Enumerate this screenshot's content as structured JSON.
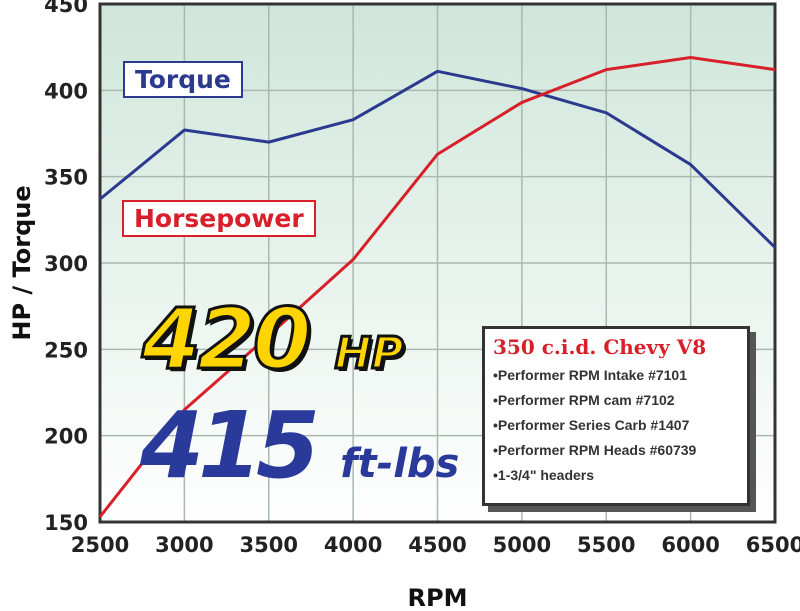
{
  "chart_data": {
    "type": "line",
    "xlabel": "RPM",
    "ylabel": "HP / Torque",
    "xlim": [
      2500,
      6500
    ],
    "ylim": [
      150,
      450
    ],
    "x": [
      2500,
      3000,
      3500,
      4000,
      4500,
      5000,
      5500,
      6000,
      6500
    ],
    "x_ticks": [
      "2500",
      "3000",
      "3500",
      "4000",
      "4500",
      "5000",
      "5500",
      "6000",
      "6500"
    ],
    "y_ticks": [
      "150",
      "200",
      "250",
      "300",
      "350",
      "400",
      "450"
    ],
    "grid": true,
    "series": [
      {
        "name": "Torque",
        "color": "#2b3a8f",
        "values": [
          337,
          377,
          370,
          383,
          411,
          401,
          387,
          357,
          309
        ]
      },
      {
        "name": "Horsepower",
        "color": "#d8202a",
        "values": [
          153,
          215,
          258,
          302,
          363,
          393,
          412,
          419,
          412
        ]
      }
    ],
    "legend_placement": "inline",
    "annotations": {
      "hp_value": "420",
      "hp_unit": "HP",
      "torque_value": "415",
      "torque_unit": "ft-lbs",
      "spec_title": "350 c.i.d. Chevy V8",
      "spec_items": [
        "Performer RPM Intake #7101",
        "Performer RPM cam #7102",
        "Performer Series Carb #1407",
        "Performer RPM Heads #60739",
        "1-3/4\" headers"
      ]
    },
    "plot_background": "#cfe6da"
  }
}
